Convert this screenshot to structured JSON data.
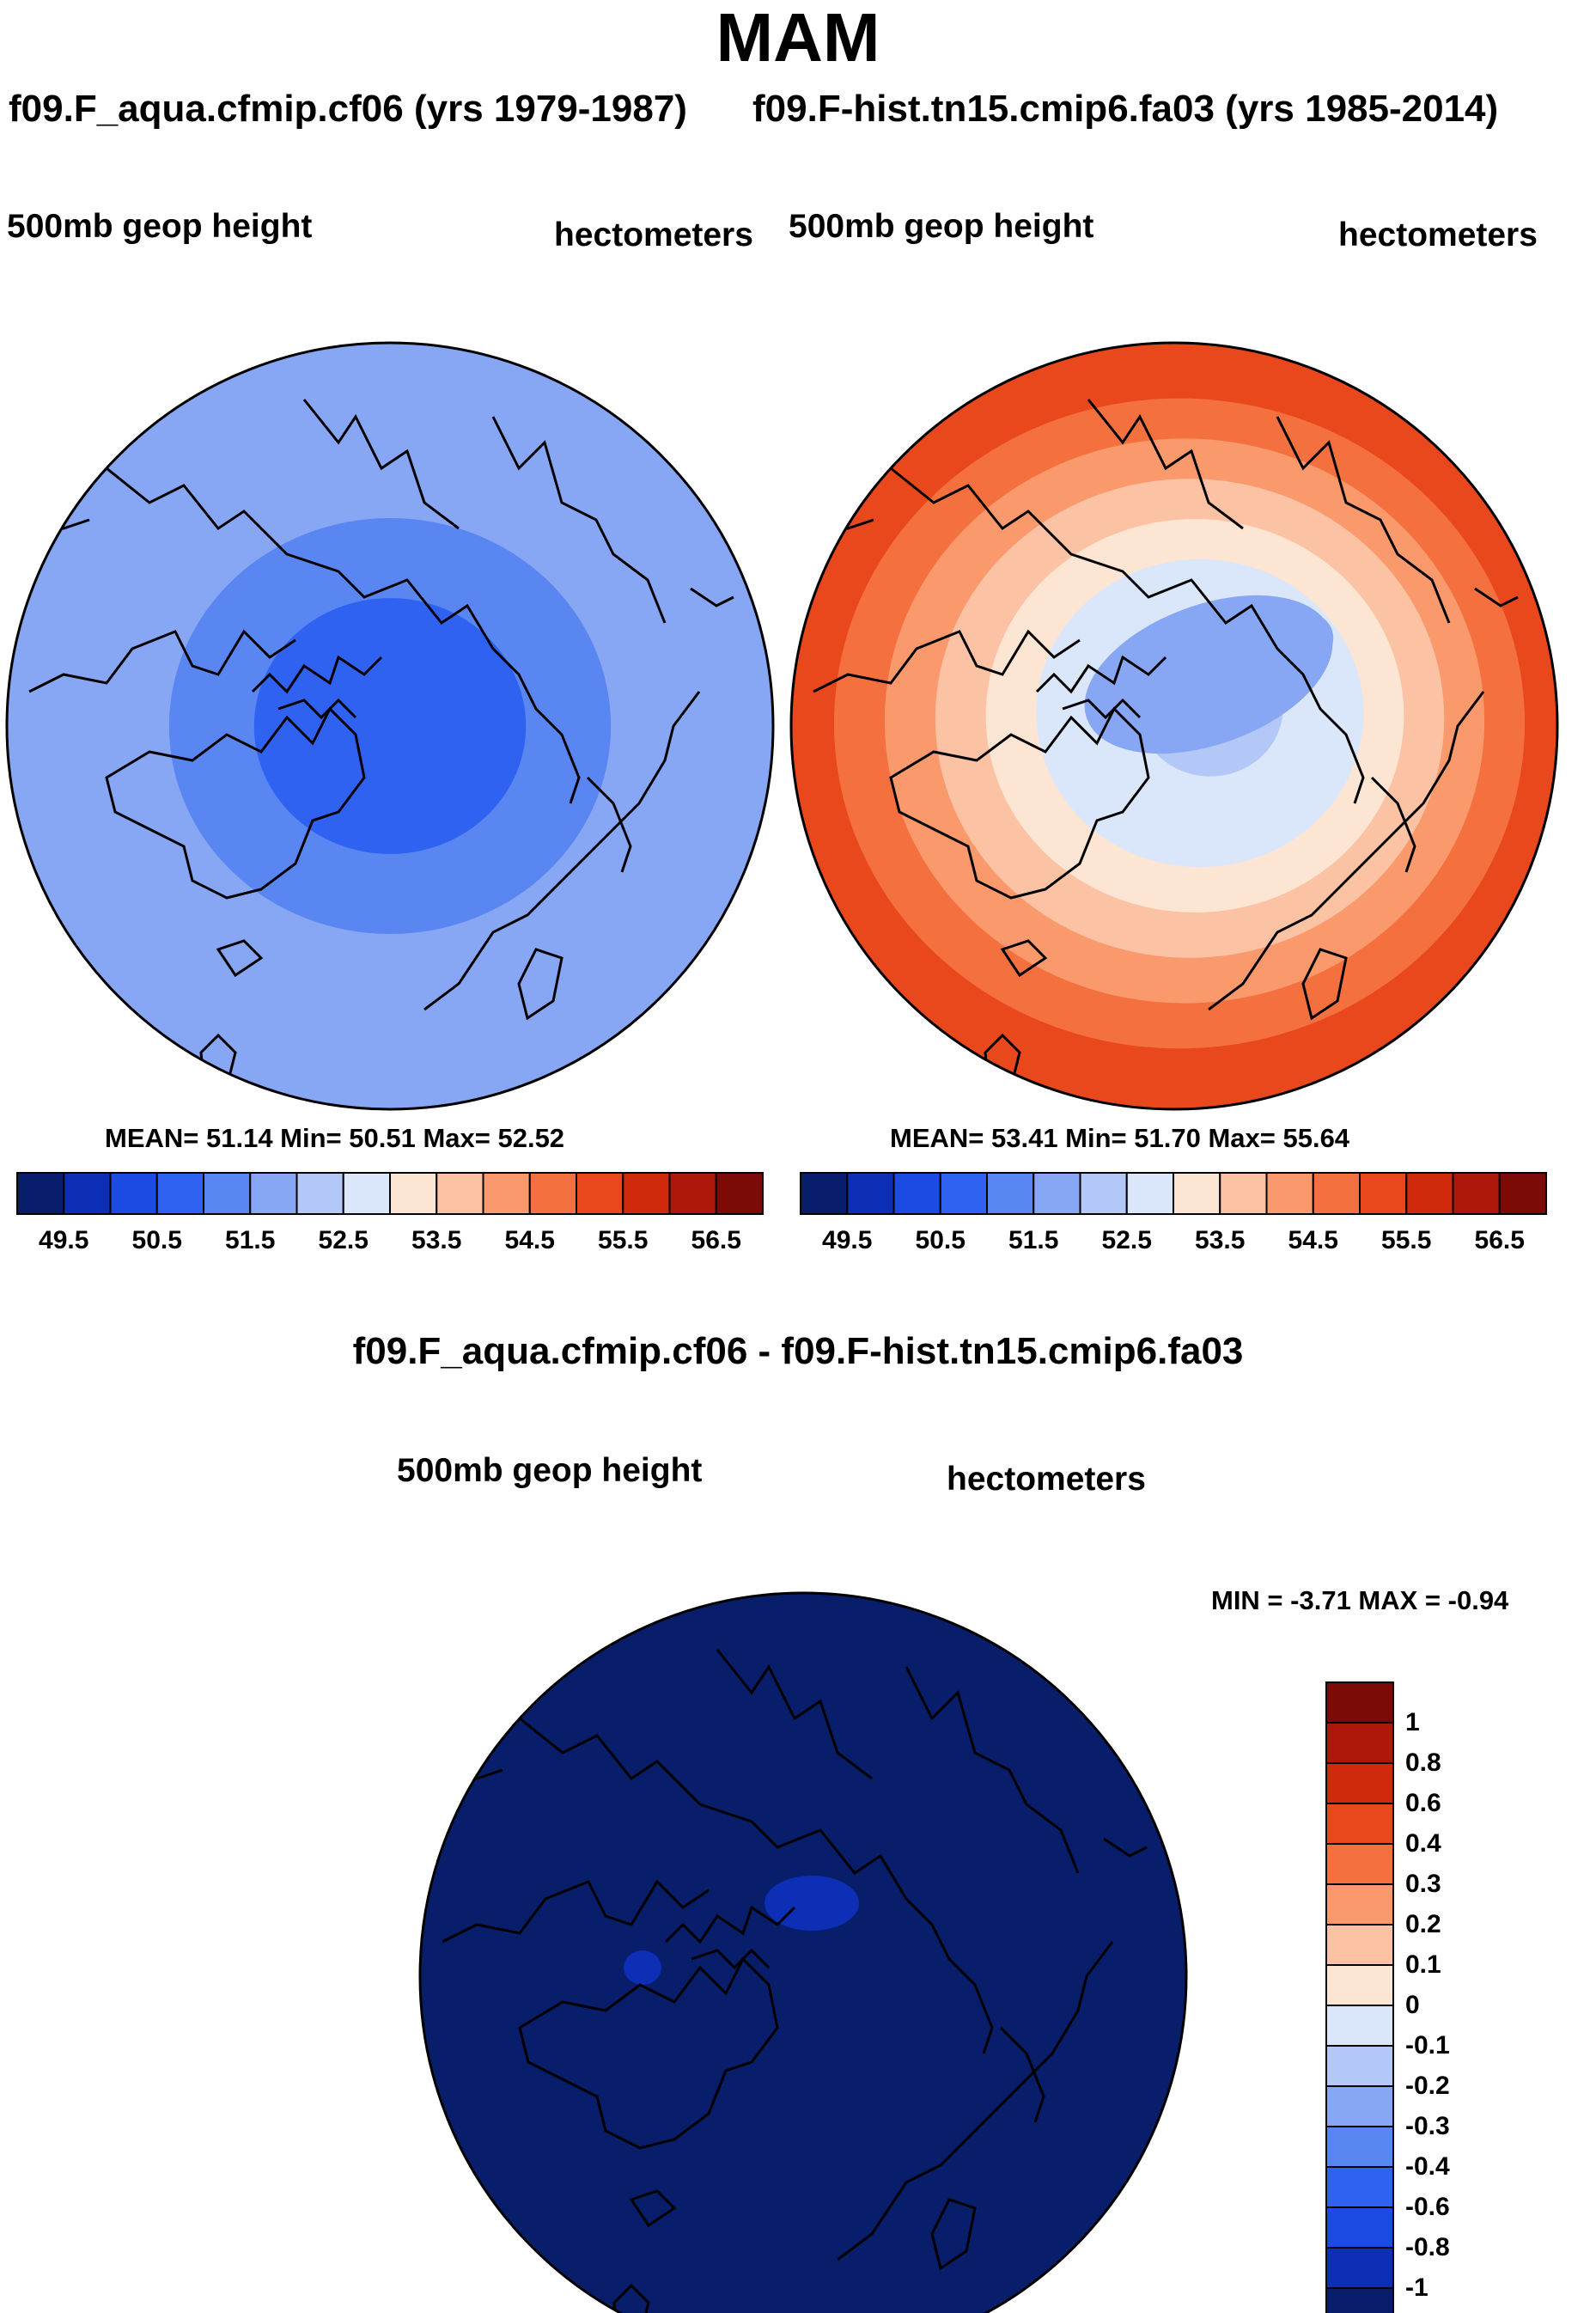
{
  "page": {
    "season_title": "MAM",
    "diff_title": "f09.F_aqua.cfmip.cf06 - f09.F-hist.tn15.cmip6.fa03"
  },
  "panels": [
    {
      "case_title": "f09.F_aqua.cfmip.cf06 (yrs 1979-1987)",
      "variable": "500mb geop height",
      "units": "hectometers",
      "mean_text": "MEAN=  51.14  Min=  50.51  Max=  52.52",
      "mean": 51.14,
      "min": 50.51,
      "max": 52.52,
      "rings": [
        51.9,
        51.5,
        51.2,
        50.9
      ],
      "center_blobs": []
    },
    {
      "case_title": "f09.F-hist.tn15.cmip6.fa03 (yrs 1985-2014)",
      "variable": "500mb geop height",
      "units": "hectometers",
      "mean_text": "MEAN=  53.41  Min=  51.70  Max=  55.64",
      "mean": 53.41,
      "min": 51.7,
      "max": 55.64,
      "rings": [
        55.1,
        54.7,
        54.2,
        53.8,
        53.3,
        52.9,
        52.6,
        52.3
      ],
      "center_blobs": [
        51.9,
        51.7
      ]
    }
  ],
  "difference": {
    "variable": "500mb geop height",
    "units": "hectometers",
    "minmax_text": "MIN =  -3.71  MAX =  -0.94",
    "min": -3.71,
    "max": -0.94
  },
  "colorbar_abs": {
    "labels": [
      "49.5",
      "50.5",
      "51.5",
      "52.5",
      "53.5",
      "54.5",
      "55.5",
      "56.5"
    ],
    "levels": [
      49.5,
      49.75,
      50,
      50.5,
      51,
      51.5,
      52,
      52.5,
      53,
      53.5,
      54,
      54.5,
      55,
      55.5,
      56,
      56.5
    ],
    "colors": [
      "#081e6b",
      "#0c2fb5",
      "#1c4be3",
      "#2f62f0",
      "#5a86f2",
      "#87a7f4",
      "#b4c8f7",
      "#dae7fb",
      "#fde5d3",
      "#fcc2a4",
      "#fa9a6c",
      "#f5703f",
      "#e9471c",
      "#cf2a0c",
      "#ad180a",
      "#7c0b08"
    ]
  },
  "colorbar_diff": {
    "labels": [
      "1",
      "0.8",
      "0.6",
      "0.4",
      "0.3",
      "0.2",
      "0.1",
      "0",
      "-0.1",
      "-0.2",
      "-0.3",
      "-0.4",
      "-0.6",
      "-0.8",
      "-1"
    ],
    "colors_top_to_bottom": [
      "#7c0b08",
      "#ad180a",
      "#cf2a0c",
      "#e9471c",
      "#f5703f",
      "#fa9a6c",
      "#fcc2a4",
      "#fde5d3",
      "#dae7fb",
      "#b4c8f7",
      "#87a7f4",
      "#5a86f2",
      "#2f62f0",
      "#1c4be3",
      "#0c2fb5",
      "#081e6b"
    ]
  }
}
